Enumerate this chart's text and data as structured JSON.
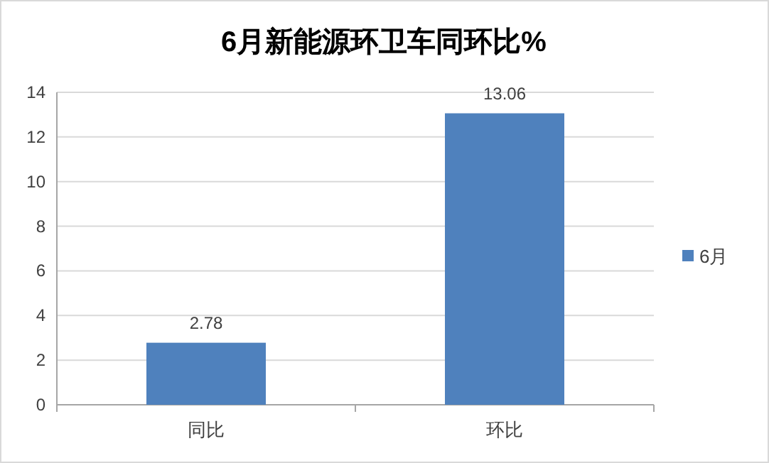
{
  "chart_data": {
    "type": "bar",
    "title": "6月新能源环卫车同环比%",
    "categories": [
      "同比",
      "环比"
    ],
    "series": [
      {
        "name": "6月",
        "color": "#4f81bd",
        "values": [
          2.78,
          13.06
        ]
      }
    ],
    "ylim": [
      0,
      14
    ],
    "yticks": [
      0,
      2,
      4,
      6,
      8,
      10,
      12,
      14
    ],
    "grid": "y",
    "legend": "right",
    "data_labels": true
  }
}
